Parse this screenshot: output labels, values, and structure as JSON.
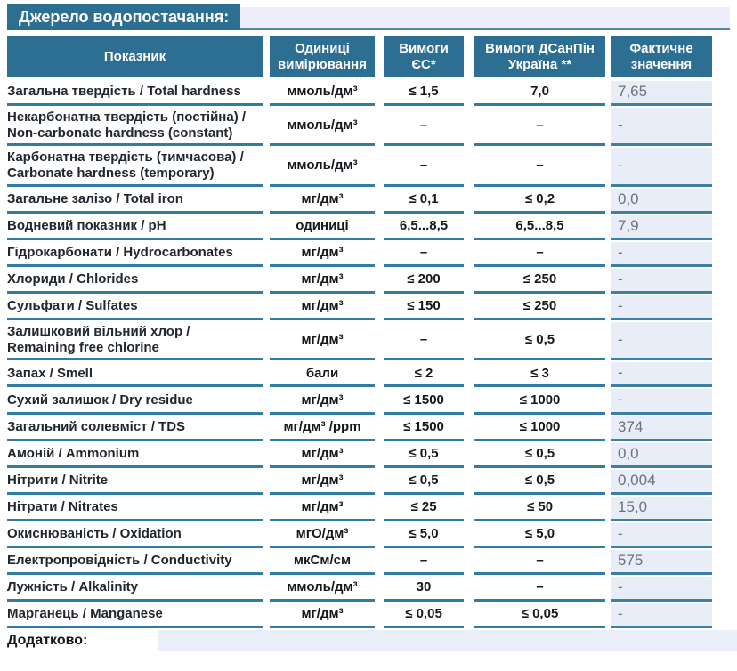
{
  "title": "Джерело водопостачання:",
  "table": {
    "headers": {
      "indicator": "Показник",
      "units": "Одиниці вимірювання",
      "eu": "Вимоги ЄС*",
      "ua": "Вимоги ДСанПін Україна **",
      "fact": "Фактичне значення"
    },
    "rows": [
      {
        "name": "Загальна твердість / Total hardness",
        "unit": "ммоль/дм³",
        "eu": "≤ 1,5",
        "ua": "7,0",
        "fact": "7,65"
      },
      {
        "name": "Некарбонатна твердість (постійна) / Non-carbonate hardness (constant)",
        "unit": "ммоль/дм³",
        "eu": "–",
        "ua": "–",
        "fact": "-"
      },
      {
        "name": "Карбонатна твердість (тимчасова) / Carbonate hardness (temporary)",
        "unit": "ммоль/дм³",
        "eu": "–",
        "ua": "–",
        "fact": "-"
      },
      {
        "name": "Загальне залізо / Total iron",
        "unit": "мг/дм³",
        "eu": "≤ 0,1",
        "ua": "≤ 0,2",
        "fact": "0,0"
      },
      {
        "name": "Водневий показник / pH",
        "unit": "одиниці",
        "eu": "6,5...8,5",
        "ua": "6,5...8,5",
        "fact": "7,9"
      },
      {
        "name": "Гідрокарбонати / Hydrocarbonates",
        "unit": "мг/дм³",
        "eu": "–",
        "ua": "–",
        "fact": "-"
      },
      {
        "name": "Хлориди / Chlorides",
        "unit": "мг/дм³",
        "eu": "≤ 200",
        "ua": "≤ 250",
        "fact": "-"
      },
      {
        "name": "Сульфати / Sulfates",
        "unit": "мг/дм³",
        "eu": "≤ 150",
        "ua": "≤ 250",
        "fact": "-"
      },
      {
        "name": "Залишковий вільний хлор / Remaining free chlorine",
        "unit": "мг/дм³",
        "eu": "–",
        "ua": "≤ 0,5",
        "fact": "-"
      },
      {
        "name": "Запах / Smell",
        "unit": "бали",
        "eu": "≤ 2",
        "ua": "≤ 3",
        "fact": "-"
      },
      {
        "name": "Сухий залишок / Dry residue",
        "unit": "мг/дм³",
        "eu": "≤ 1500",
        "ua": "≤ 1000",
        "fact": "-"
      },
      {
        "name": "Загальний солевміст / TDS",
        "unit": "мг/дм³ /ppm",
        "eu": "≤ 1500",
        "ua": "≤ 1000",
        "fact": "374"
      },
      {
        "name": "Амоній / Ammonium",
        "unit": "мг/дм³",
        "eu": "≤ 0,5",
        "ua": "≤ 0,5",
        "fact": "0,0"
      },
      {
        "name": "Нітрити / Nitrite",
        "unit": "мг/дм³",
        "eu": "≤ 0,5",
        "ua": "≤ 0,5",
        "fact": "0,004"
      },
      {
        "name": "Нітрати / Nitrates",
        "unit": "мг/дм³",
        "eu": "≤ 25",
        "ua": "≤ 50",
        "fact": "15,0"
      },
      {
        "name": "Окиснюваність / Oxidation",
        "unit": "мгО/дм³",
        "eu": "≤ 5,0",
        "ua": "≤ 5,0",
        "fact": "-"
      },
      {
        "name": "Електропровідність / Conductivity",
        "unit": "мкСм/см",
        "eu": "–",
        "ua": "–",
        "fact": "575"
      },
      {
        "name": "Лужність / Alkalinity",
        "unit": "ммоль/дм³",
        "eu": "30",
        "ua": "–",
        "fact": "-"
      },
      {
        "name": "Марганець / Manganese",
        "unit": "мг/дм³",
        "eu": "≤ 0,05",
        "ua": "≤ 0,05",
        "fact": "-"
      }
    ]
  },
  "footer": {
    "label": "Додатково:"
  },
  "colors": {
    "header_teal": "#2d6f93",
    "row_underline": "#337ca1",
    "fact_cell_background": "#e9edf8",
    "fact_text": "#6b7280"
  }
}
